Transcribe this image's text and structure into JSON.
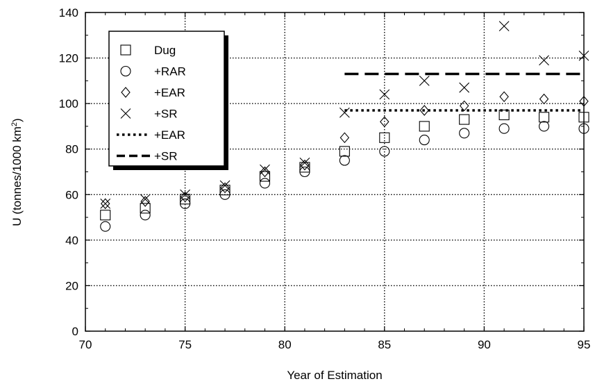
{
  "chart_data": {
    "type": "scatter",
    "title": "",
    "xlabel": "Year of Estimation",
    "ylabel_main": "U (tonnes/1000 km",
    "ylabel_sup": "2",
    "ylabel_close": ")",
    "xlim": [
      70,
      95
    ],
    "ylim": [
      0,
      140
    ],
    "x_ticks": [
      70,
      75,
      80,
      85,
      90,
      95
    ],
    "y_ticks": [
      0,
      20,
      40,
      60,
      80,
      100,
      120,
      140
    ],
    "grid": true,
    "legend_position": "top-left",
    "series": [
      {
        "name": "Dug",
        "marker": "square",
        "points": [
          [
            71,
            51
          ],
          [
            73,
            54
          ],
          [
            75,
            58
          ],
          [
            77,
            62
          ],
          [
            79,
            68
          ],
          [
            81,
            72
          ],
          [
            83,
            79
          ],
          [
            85,
            85
          ],
          [
            87,
            90
          ],
          [
            89,
            93
          ],
          [
            91,
            95
          ],
          [
            93,
            94
          ],
          [
            95,
            94
          ]
        ]
      },
      {
        "name": "+RAR",
        "marker": "circle",
        "points": [
          [
            71,
            46
          ],
          [
            73,
            51
          ],
          [
            75,
            56
          ],
          [
            77,
            60
          ],
          [
            79,
            65
          ],
          [
            81,
            70
          ],
          [
            83,
            75
          ],
          [
            85,
            79
          ],
          [
            87,
            84
          ],
          [
            89,
            87
          ],
          [
            91,
            89
          ],
          [
            93,
            90
          ],
          [
            95,
            89
          ]
        ]
      },
      {
        "name": "+EAR",
        "marker": "diamond",
        "points": [
          [
            71,
            56
          ],
          [
            73,
            57
          ],
          [
            75,
            59
          ],
          [
            77,
            63
          ],
          [
            79,
            70
          ],
          [
            81,
            73
          ],
          [
            83,
            85
          ],
          [
            85,
            92
          ],
          [
            87,
            97
          ],
          [
            89,
            99
          ],
          [
            91,
            103
          ],
          [
            93,
            102
          ],
          [
            95,
            101
          ]
        ]
      },
      {
        "name": "+SR",
        "marker": "cross",
        "points": [
          [
            71,
            56
          ],
          [
            73,
            58
          ],
          [
            75,
            60
          ],
          [
            77,
            64
          ],
          [
            79,
            71
          ],
          [
            81,
            74
          ],
          [
            83,
            96
          ],
          [
            85,
            104
          ],
          [
            87,
            110
          ],
          [
            89,
            107
          ],
          [
            91,
            134
          ],
          [
            93,
            119
          ],
          [
            95,
            121
          ]
        ]
      }
    ],
    "lines": [
      {
        "name": "+EAR",
        "style": "dotted",
        "x": [
          83,
          95
        ],
        "y": [
          97,
          97
        ]
      },
      {
        "name": "+SR",
        "style": "dashed",
        "x": [
          83,
          95
        ],
        "y": [
          113,
          113
        ]
      }
    ]
  }
}
